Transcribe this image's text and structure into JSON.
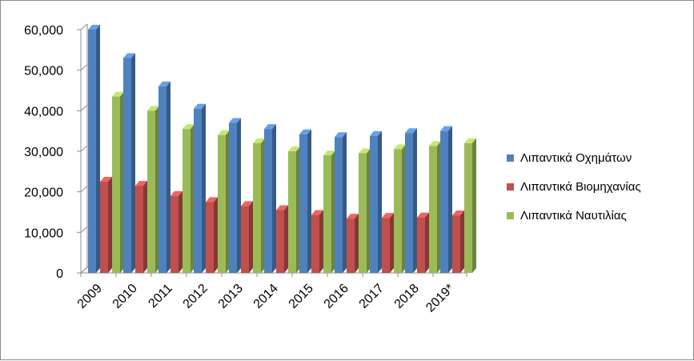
{
  "chart_data": {
    "type": "bar",
    "categories": [
      "2009",
      "2010",
      "2011",
      "2012",
      "2013",
      "2014",
      "2015",
      "2016",
      "2017",
      "2018",
      "2019*"
    ],
    "series": [
      {
        "name": "Λιπαντικά Οχημάτων",
        "color": "#4f81bd",
        "values": [
          60000,
          53000,
          46000,
          40500,
          37000,
          35500,
          34200,
          33500,
          33800,
          34500,
          35000
        ]
      },
      {
        "name": "Λιπαντικά Βιομηχανίας",
        "color": "#c0504d",
        "values": [
          22500,
          21500,
          19000,
          17500,
          16500,
          15500,
          14300,
          13400,
          13600,
          13700,
          14200
        ]
      },
      {
        "name": "Λιπαντικά Ναυτιλίας",
        "color": "#9bbb59",
        "values": [
          43500,
          40000,
          35500,
          34000,
          32000,
          30000,
          29000,
          29500,
          30500,
          31300,
          32000
        ]
      }
    ],
    "yticks": [
      "0",
      "10,000",
      "20,000",
      "30,000",
      "40,000",
      "50,000",
      "60,000"
    ],
    "ylim": [
      0,
      60000
    ],
    "grid": false,
    "legend": "right"
  }
}
